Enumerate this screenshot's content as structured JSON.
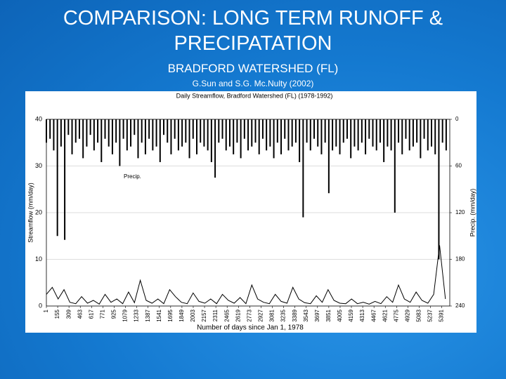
{
  "slide": {
    "title_line1": "COMPARISON:  LONG TERM RUNOFF &",
    "title_line2": "PRECIPATATION",
    "subtitle": "BRADFORD WATERSHED (FL)",
    "citation": "G.Sun and S.G. Mc.Nulty (2002)"
  },
  "chart_data": {
    "type": "line",
    "title": "Daily Streamflow,  Bradford Watershed (FL) (1978-1992)",
    "xlabel": "Number of days since Jan 1, 1978",
    "ylabel": "Streamflow (mm/day)",
    "y2label": "Precip. (mm/day)",
    "annotation": "Precip.",
    "grid": true,
    "xlim": [
      1,
      5500
    ],
    "xticks": [
      1,
      155,
      309,
      463,
      617,
      771,
      925,
      1079,
      1233,
      1387,
      1541,
      1695,
      1849,
      2003,
      2157,
      2311,
      2465,
      2619,
      2773,
      2927,
      3081,
      3235,
      3389,
      3543,
      3697,
      3851,
      4005,
      4159,
      4313,
      4467,
      4621,
      4775,
      4929,
      5083,
      5237,
      5391
    ],
    "ylim": [
      0,
      40
    ],
    "yticks": [
      0,
      10,
      20,
      30,
      40
    ],
    "y2lim": [
      240,
      0
    ],
    "y2ticks": [
      0,
      60,
      120,
      180,
      240
    ],
    "series": [
      {
        "name": "Precip.",
        "type": "bar",
        "axis": "y2",
        "color": "#000000",
        "x": [
          1,
          51,
          101,
          151,
          201,
          251,
          301,
          351,
          401,
          451,
          501,
          551,
          601,
          651,
          701,
          751,
          801,
          851,
          901,
          951,
          1001,
          1051,
          1101,
          1151,
          1201,
          1251,
          1301,
          1351,
          1401,
          1451,
          1501,
          1551,
          1601,
          1651,
          1701,
          1751,
          1801,
          1851,
          1901,
          1951,
          2001,
          2051,
          2101,
          2151,
          2201,
          2251,
          2301,
          2351,
          2401,
          2451,
          2501,
          2551,
          2601,
          2651,
          2701,
          2751,
          2801,
          2851,
          2901,
          2951,
          3001,
          3051,
          3101,
          3151,
          3201,
          3251,
          3301,
          3351,
          3401,
          3451,
          3501,
          3551,
          3601,
          3651,
          3701,
          3751,
          3801,
          3851,
          3901,
          3951,
          4001,
          4051,
          4101,
          4151,
          4201,
          4251,
          4301,
          4351,
          4401,
          4451,
          4501,
          4551,
          4601,
          4651,
          4701,
          4751,
          4801,
          4851,
          4901,
          4951,
          5001,
          5051,
          5101,
          5151,
          5201,
          5251,
          5301,
          5351,
          5401,
          5451
        ],
        "values": [
          30,
          25,
          40,
          150,
          35,
          155,
          20,
          45,
          30,
          25,
          50,
          35,
          20,
          40,
          30,
          55,
          25,
          35,
          45,
          30,
          60,
          25,
          40,
          35,
          20,
          50,
          30,
          45,
          25,
          40,
          35,
          55,
          20,
          30,
          45,
          25,
          40,
          35,
          30,
          50,
          25,
          45,
          30,
          35,
          40,
          55,
          75,
          30,
          25,
          40,
          35,
          45,
          30,
          50,
          25,
          40,
          35,
          30,
          45,
          25,
          40,
          35,
          50,
          30,
          45,
          25,
          40,
          35,
          30,
          55,
          126,
          30,
          40,
          25,
          35,
          45,
          30,
          95,
          40,
          35,
          45,
          30,
          25,
          50,
          35,
          40,
          30,
          45,
          25,
          35,
          40,
          30,
          55,
          35,
          40,
          120,
          30,
          45,
          25,
          40,
          35,
          30,
          50,
          25,
          40,
          35,
          45,
          180,
          30,
          40
        ]
      },
      {
        "name": "Streamflow",
        "type": "line",
        "axis": "y",
        "color": "#000000",
        "x": [
          1,
          81,
          161,
          241,
          321,
          401,
          481,
          561,
          641,
          721,
          801,
          881,
          961,
          1041,
          1121,
          1201,
          1281,
          1361,
          1441,
          1521,
          1601,
          1681,
          1761,
          1841,
          1921,
          2001,
          2081,
          2161,
          2241,
          2321,
          2401,
          2481,
          2561,
          2641,
          2721,
          2801,
          2881,
          2961,
          3041,
          3121,
          3201,
          3281,
          3361,
          3441,
          3521,
          3601,
          3681,
          3761,
          3841,
          3921,
          4001,
          4081,
          4161,
          4241,
          4321,
          4401,
          4481,
          4561,
          4641,
          4721,
          4801,
          4881,
          4961,
          5041,
          5121,
          5201,
          5281,
          5361,
          5441
        ],
        "values": [
          2.5,
          4,
          1.5,
          3.5,
          0.8,
          0.5,
          2,
          0.6,
          1.2,
          0.4,
          2.5,
          0.8,
          1.5,
          0.5,
          3,
          0.7,
          5.5,
          1.2,
          0.6,
          1.5,
          0.5,
          3.5,
          2,
          0.8,
          0.5,
          2.8,
          1,
          0.6,
          1.5,
          0.5,
          2.5,
          1.2,
          0.6,
          1.8,
          0.5,
          4.5,
          1.5,
          0.8,
          0.5,
          2.5,
          1,
          0.6,
          4,
          1.5,
          0.7,
          0.5,
          2.2,
          0.8,
          3.5,
          1.2,
          0.6,
          0.5,
          1.5,
          0.5,
          0.8,
          0.4,
          1,
          0.5,
          2,
          0.8,
          4.5,
          1.5,
          0.8,
          3,
          1.2,
          0.6,
          2.5,
          13,
          1.5
        ]
      }
    ]
  }
}
